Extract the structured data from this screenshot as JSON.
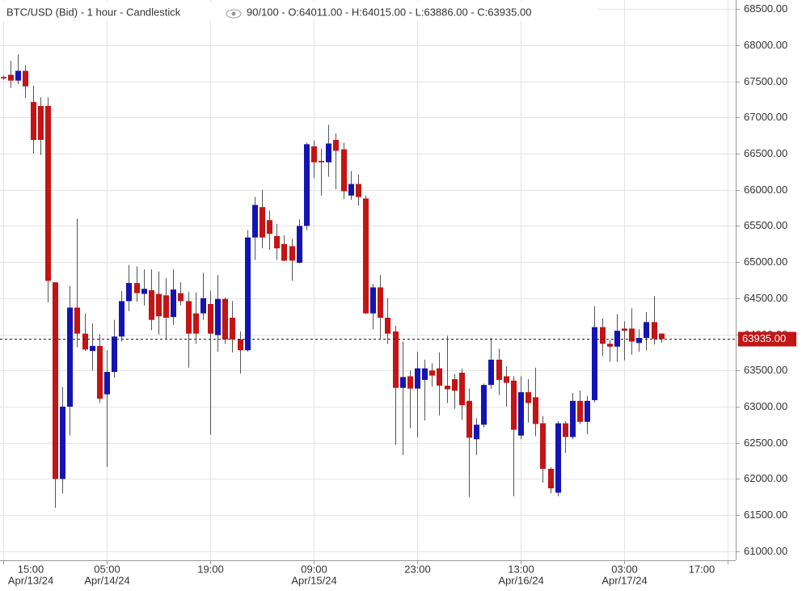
{
  "chart_data": {
    "type": "candlestick",
    "title": "BTC/USD (Bid) - 1 hour - Candlestick",
    "info": "90/100 - O:64011.00 - H:64015.00 - L:63886.00 - C:63935.00",
    "up_color": "#1414b4",
    "down_color": "#c41414",
    "grid": true,
    "open": [
      67560,
      67590,
      67510,
      67645,
      67215,
      67160,
      67160,
      64720,
      62000,
      63000,
      64370,
      64010,
      63770,
      63840,
      63170,
      63480,
      63970,
      64460,
      64710,
      64560,
      64610,
      64560,
      64540,
      64240,
      64570,
      64460,
      64290,
      64290,
      64420,
      63990,
      64490,
      64230,
      63930,
      63780,
      65340,
      65760,
      65580,
      65360,
      65250,
      65220,
      64990,
      65500,
      66600,
      66400,
      66380,
      66690,
      66560,
      65920,
      66080,
      65880,
      64290,
      64650,
      64230,
      64040,
      63260,
      63420,
      63250,
      63370,
      63500,
      63530,
      63290,
      63380,
      63470,
      63080,
      62550,
      62750,
      63300,
      63650,
      63420,
      63360,
      62600,
      63200,
      63130,
      62770,
      62140,
      61810,
      62770,
      62580,
      63080,
      62790,
      63090,
      64100,
      63870,
      63830,
      64080,
      64080,
      63880,
      63950,
      64170,
      64011
    ],
    "high": [
      67580,
      67780,
      67870,
      67720,
      67440,
      67280,
      67280,
      64720,
      63270,
      64670,
      65600,
      64290,
      64150,
      64000,
      63780,
      64200,
      64600,
      64960,
      64940,
      64900,
      64900,
      64870,
      64780,
      64900,
      64720,
      64590,
      64580,
      64850,
      64600,
      64820,
      64510,
      64460,
      64040,
      65440,
      65900,
      66000,
      65710,
      65530,
      65370,
      65320,
      65590,
      66650,
      66680,
      66570,
      66900,
      66780,
      66650,
      66260,
      66210,
      65920,
      64700,
      64820,
      64500,
      64120,
      63900,
      63500,
      63760,
      63650,
      63600,
      63750,
      63980,
      63450,
      63530,
      63250,
      62840,
      63320,
      63950,
      63800,
      63560,
      63420,
      63420,
      63380,
      63540,
      62870,
      62160,
      62800,
      62800,
      63190,
      63220,
      63150,
      64390,
      64220,
      63920,
      64280,
      64180,
      64360,
      64070,
      64310,
      64530,
      64015
    ],
    "low": [
      67520,
      67410,
      67460,
      67270,
      66500,
      66480,
      64440,
      61600,
      61800,
      62600,
      63820,
      63770,
      63500,
      63050,
      62170,
      63400,
      63900,
      64320,
      64450,
      64400,
      64060,
      64000,
      63930,
      64130,
      64400,
      63540,
      63870,
      64200,
      62610,
      63760,
      63870,
      63750,
      63460,
      63760,
      65030,
      65190,
      65170,
      65030,
      65010,
      64740,
      64980,
      65440,
      66160,
      65920,
      66180,
      66010,
      65870,
      65860,
      65780,
      64280,
      64070,
      63940,
      63870,
      62470,
      62330,
      62700,
      62580,
      62810,
      63280,
      62880,
      63050,
      62970,
      62820,
      61750,
      62330,
      62710,
      63250,
      63160,
      63000,
      61760,
      62550,
      62780,
      62590,
      61950,
      61800,
      61760,
      62360,
      62550,
      62760,
      62620,
      63060,
      63700,
      63620,
      63620,
      63640,
      63720,
      63760,
      63780,
      63860,
      63886
    ],
    "close": [
      67540,
      67510,
      67645,
      67430,
      66690,
      66690,
      64740,
      62000,
      63000,
      64370,
      64010,
      63790,
      63840,
      63110,
      63480,
      63970,
      64460,
      64710,
      64570,
      64630,
      64200,
      64250,
      64230,
      64620,
      64460,
      64010,
      64010,
      64500,
      64010,
      64490,
      63930,
      63930,
      63780,
      65340,
      65790,
      65340,
      65390,
      65190,
      65020,
      65020,
      65500,
      66630,
      66380,
      66380,
      66640,
      66540,
      65980,
      66080,
      65900,
      64290,
      64650,
      64230,
      64010,
      63260,
      63410,
      63250,
      63530,
      63530,
      63430,
      63290,
      63240,
      63220,
      63020,
      62570,
      62750,
      63300,
      63650,
      63370,
      63330,
      62680,
      63200,
      63050,
      62760,
      62140,
      61870,
      62770,
      62580,
      63080,
      62790,
      63080,
      64100,
      63870,
      63830,
      64050,
      64050,
      63900,
      63950,
      64170,
      63940,
      63935
    ],
    "xlim": [
      -0.44,
      99.1
    ],
    "xticks": [
      {
        "value": 0,
        "label": "15:00",
        "date": "Apr/13/24"
      },
      {
        "value": 14,
        "label": "05:00",
        "date": "Apr/14/24"
      },
      {
        "value": 28,
        "label": "19:00"
      },
      {
        "value": 42,
        "label": "09:00",
        "date": "Apr/15/24"
      },
      {
        "value": 56,
        "label": "23:00"
      },
      {
        "value": 70,
        "label": "13:00",
        "date": "Apr/16/24"
      },
      {
        "value": 84,
        "label": "03:00",
        "date": "Apr/17/24"
      },
      {
        "value": 98,
        "label": "17:00"
      }
    ],
    "ylim": [
      60875,
      68625
    ],
    "yticks": [
      {
        "value": 61000,
        "label": "61000.00"
      },
      {
        "value": 61500,
        "label": "61500.00"
      },
      {
        "value": 62000,
        "label": "62000.00"
      },
      {
        "value": 62500,
        "label": "62500.00"
      },
      {
        "value": 63000,
        "label": "63000.00"
      },
      {
        "value": 63500,
        "label": "63500.00"
      },
      {
        "value": 64000,
        "label": "64000.00"
      },
      {
        "value": 64500,
        "label": "64500.00"
      },
      {
        "value": 65000,
        "label": "65000.00"
      },
      {
        "value": 65500,
        "label": "65500.00"
      },
      {
        "value": 66000,
        "label": "66000.00"
      },
      {
        "value": 66500,
        "label": "66500.00"
      },
      {
        "value": 67000,
        "label": "67000.00"
      },
      {
        "value": 67500,
        "label": "67500.00"
      },
      {
        "value": 68000,
        "label": "68000.00"
      },
      {
        "value": 68500,
        "label": "68500.00"
      }
    ],
    "last_price": {
      "value": 63935,
      "label": "63935.00"
    }
  }
}
